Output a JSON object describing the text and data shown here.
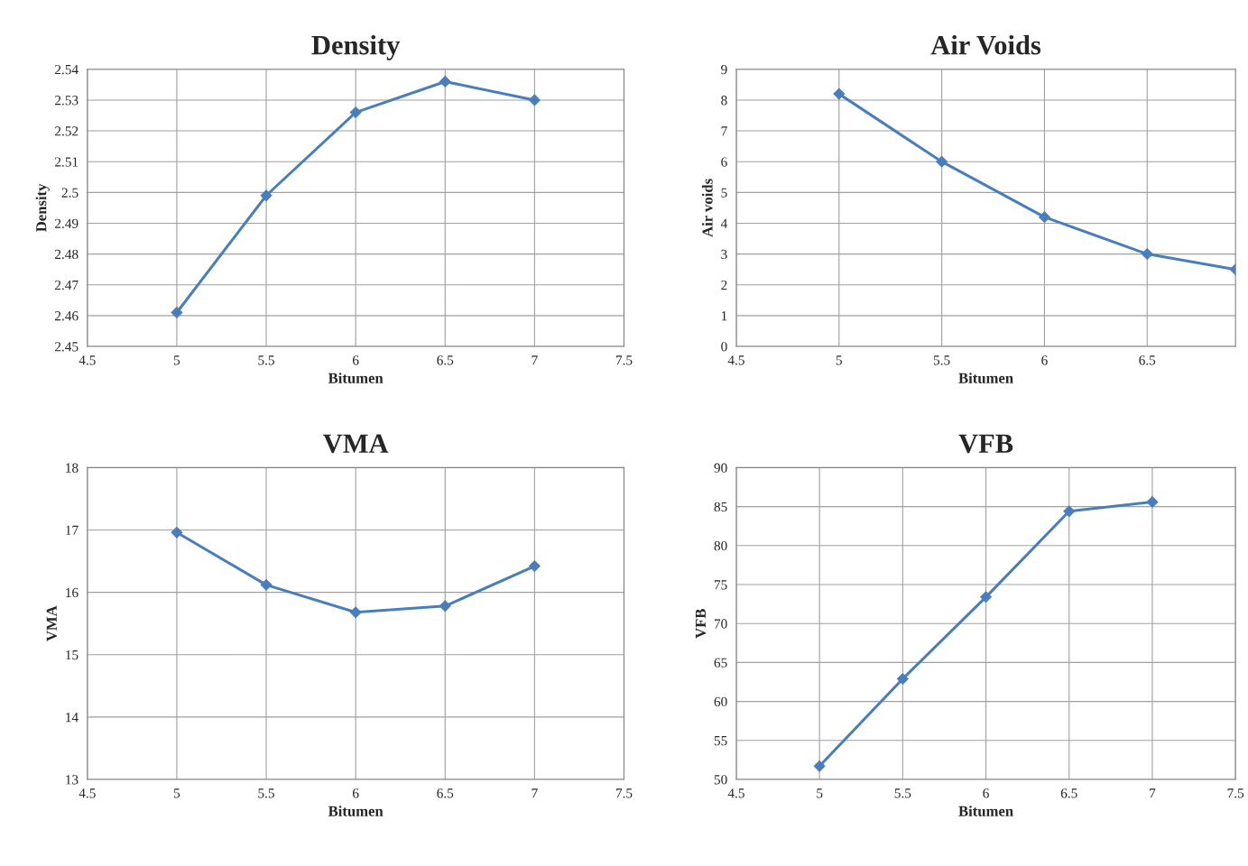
{
  "chart_data": [
    {
      "type": "line",
      "title": "Density",
      "xlabel": "Bitumen",
      "ylabel": "Density",
      "x": [
        5,
        5.5,
        6,
        6.5,
        7
      ],
      "series": [
        {
          "color": "#4a7ebb",
          "values": [
            2.461,
            2.499,
            2.526,
            2.536,
            2.53
          ]
        }
      ],
      "xlim": [
        4.5,
        7.5
      ],
      "xticks": [
        4.5,
        5,
        5.5,
        6,
        6.5,
        7,
        7.5
      ],
      "ylim": [
        2.45,
        2.54
      ],
      "yticks": [
        2.45,
        2.46,
        2.47,
        2.48,
        2.49,
        2.5,
        2.51,
        2.52,
        2.53,
        2.54
      ],
      "grid": true,
      "marker": "diamond",
      "line_style": "solid"
    },
    {
      "type": "line",
      "title": "Air Voids",
      "xlabel": "Bitumen",
      "ylabel": "Air voids",
      "x": [
        5,
        5.5,
        6,
        6.5,
        6.93
      ],
      "series": [
        {
          "color": "#4a7ebb",
          "values": [
            8.2,
            6.0,
            4.2,
            3.0,
            2.5
          ]
        }
      ],
      "xlim": [
        4.5,
        6.93
      ],
      "xticks": [
        4.5,
        5,
        5.5,
        6,
        6.5
      ],
      "ylim": [
        0,
        9
      ],
      "yticks": [
        0,
        1,
        2,
        3,
        4,
        5,
        6,
        7,
        8,
        9
      ],
      "grid": true,
      "marker": "diamond",
      "line_style": "solid"
    },
    {
      "type": "line",
      "title": "VMA",
      "xlabel": "Bitumen",
      "ylabel": "VMA",
      "x": [
        5,
        5.5,
        6,
        6.5,
        7
      ],
      "series": [
        {
          "color": "#4a7ebb",
          "values": [
            16.96,
            16.12,
            15.68,
            15.78,
            16.42
          ]
        }
      ],
      "xlim": [
        4.5,
        7.5
      ],
      "xticks": [
        4.5,
        5,
        5.5,
        6,
        6.5,
        7,
        7.5
      ],
      "ylim": [
        13,
        18
      ],
      "yticks": [
        13,
        14,
        15,
        16,
        17,
        18
      ],
      "grid": true,
      "marker": "diamond",
      "line_style": "solid"
    },
    {
      "type": "line",
      "title": "VFB",
      "xlabel": "Bitumen",
      "ylabel": "VFB",
      "x": [
        5,
        5.5,
        6,
        6.5,
        7
      ],
      "series": [
        {
          "color": "#4a7ebb",
          "values": [
            51.7,
            62.9,
            73.4,
            84.4,
            85.6
          ]
        }
      ],
      "xlim": [
        4.5,
        7.5
      ],
      "xticks": [
        4.5,
        5,
        5.5,
        6,
        6.5,
        7,
        7.5
      ],
      "ylim": [
        50,
        90
      ],
      "yticks": [
        50,
        55,
        60,
        65,
        70,
        75,
        80,
        85,
        90
      ],
      "grid": true,
      "marker": "diamond",
      "line_style": "solid"
    }
  ]
}
